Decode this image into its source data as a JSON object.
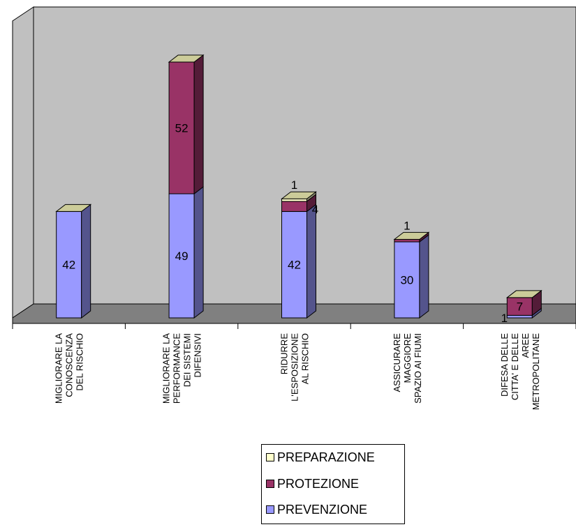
{
  "chart_data": {
    "type": "bar",
    "stacked": true,
    "three_d": true,
    "categories": [
      [
        "MIGLIORARE LA",
        "CONOSCENZA",
        "DEL RISCHIO"
      ],
      [
        "MIGLIORARE LA",
        "PERFORMANCE",
        "DEI SISTEMI",
        "DIFENSIVI"
      ],
      [
        "RIDURRE",
        "L'ESPOSIZIONE",
        "AL RISCHIO"
      ],
      [
        "ASSICURARE",
        "MAGGIORE",
        "SPAZIO AI FIUMI"
      ],
      [
        "DIFESA DELLE",
        "CITTA' E DELLE",
        "AREE",
        "METROPOLITANE"
      ]
    ],
    "series": [
      {
        "name": "PREVENZIONE",
        "color": "#9999ff",
        "values": [
          42,
          49,
          42,
          30,
          1
        ]
      },
      {
        "name": "PROTEZIONE",
        "color": "#993366",
        "values": [
          0,
          52,
          4,
          1,
          7
        ]
      },
      {
        "name": "PREPARAZIONE",
        "color": "#ffffcc",
        "values": [
          0,
          0,
          1,
          0,
          0
        ]
      }
    ],
    "data_labels": [
      {
        "category": 0,
        "series": "PREVENZIONE",
        "text": "42"
      },
      {
        "category": 1,
        "series": "PREVENZIONE",
        "text": "49"
      },
      {
        "category": 1,
        "series": "PROTEZIONE",
        "text": "52"
      },
      {
        "category": 2,
        "series": "PREVENZIONE",
        "text": "42"
      },
      {
        "category": 2,
        "series": "PROTEZIONE",
        "text": "4"
      },
      {
        "category": 2,
        "series": "PREPARAZIONE",
        "text": "1"
      },
      {
        "category": 3,
        "series": "PREVENZIONE",
        "text": "30"
      },
      {
        "category": 3,
        "series": "PROTEZIONE",
        "text": "1"
      },
      {
        "category": 4,
        "series": "PREVENZIONE",
        "text": "1"
      },
      {
        "category": 4,
        "series": "PROTEZIONE",
        "text": "7"
      }
    ],
    "ylim": [
      0,
      120
    ],
    "grid": false,
    "legend_position": "bottom",
    "title": "",
    "xlabel": "",
    "ylabel": ""
  },
  "legend": {
    "items": [
      {
        "label": "PREPARAZIONE",
        "color": "#ffffcc"
      },
      {
        "label": "PROTEZIONE",
        "color": "#993366"
      },
      {
        "label": "PREVENZIONE",
        "color": "#9999ff"
      }
    ]
  },
  "colors": {
    "wall": "#c0c0c0",
    "floor": "#808080",
    "side_wall": "#c0c0c0"
  }
}
